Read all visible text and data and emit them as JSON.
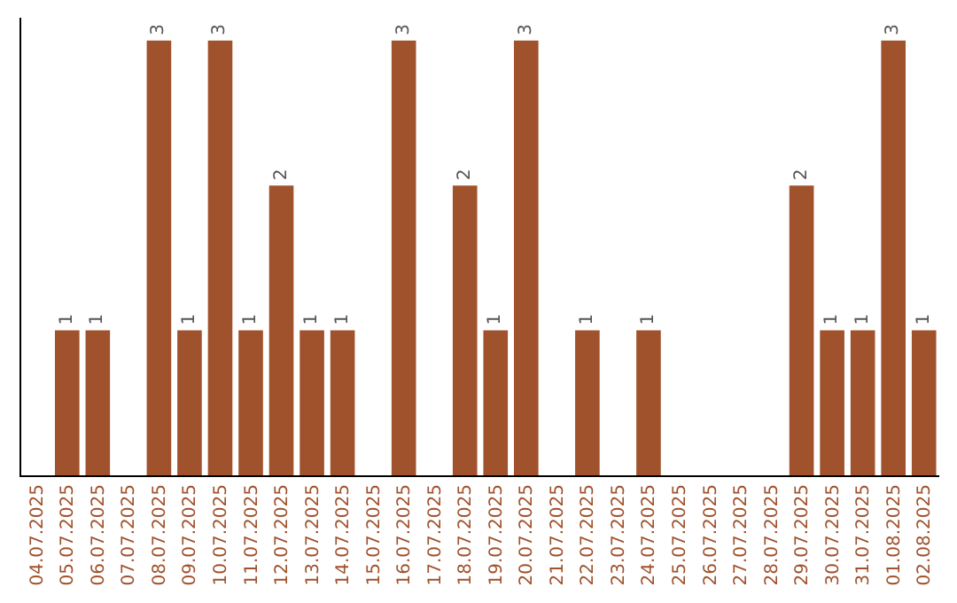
{
  "chart_data": {
    "type": "bar",
    "categories": [
      "04.07.2025",
      "05.07.2025",
      "06.07.2025",
      "07.07.2025",
      "08.07.2025",
      "09.07.2025",
      "10.07.2025",
      "11.07.2025",
      "12.07.2025",
      "13.07.2025",
      "14.07.2025",
      "15.07.2025",
      "16.07.2025",
      "17.07.2025",
      "18.07.2025",
      "19.07.2025",
      "20.07.2025",
      "21.07.2025",
      "22.07.2025",
      "23.07.2025",
      "24.07.2025",
      "25.07.2025",
      "26.07.2025",
      "27.07.2025",
      "28.07.2025",
      "29.07.2025",
      "30.07.2025",
      "31.07.2025",
      "01.08.2025",
      "02.08.2025"
    ],
    "values": [
      null,
      1,
      1,
      null,
      3,
      1,
      3,
      1,
      2,
      1,
      1,
      null,
      3,
      null,
      2,
      1,
      3,
      null,
      1,
      null,
      1,
      null,
      null,
      null,
      null,
      2,
      1,
      1,
      3,
      1
    ],
    "color": "#a0522d",
    "data_labels": true,
    "grid": false,
    "legend": false,
    "tick_labels": "x"
  }
}
